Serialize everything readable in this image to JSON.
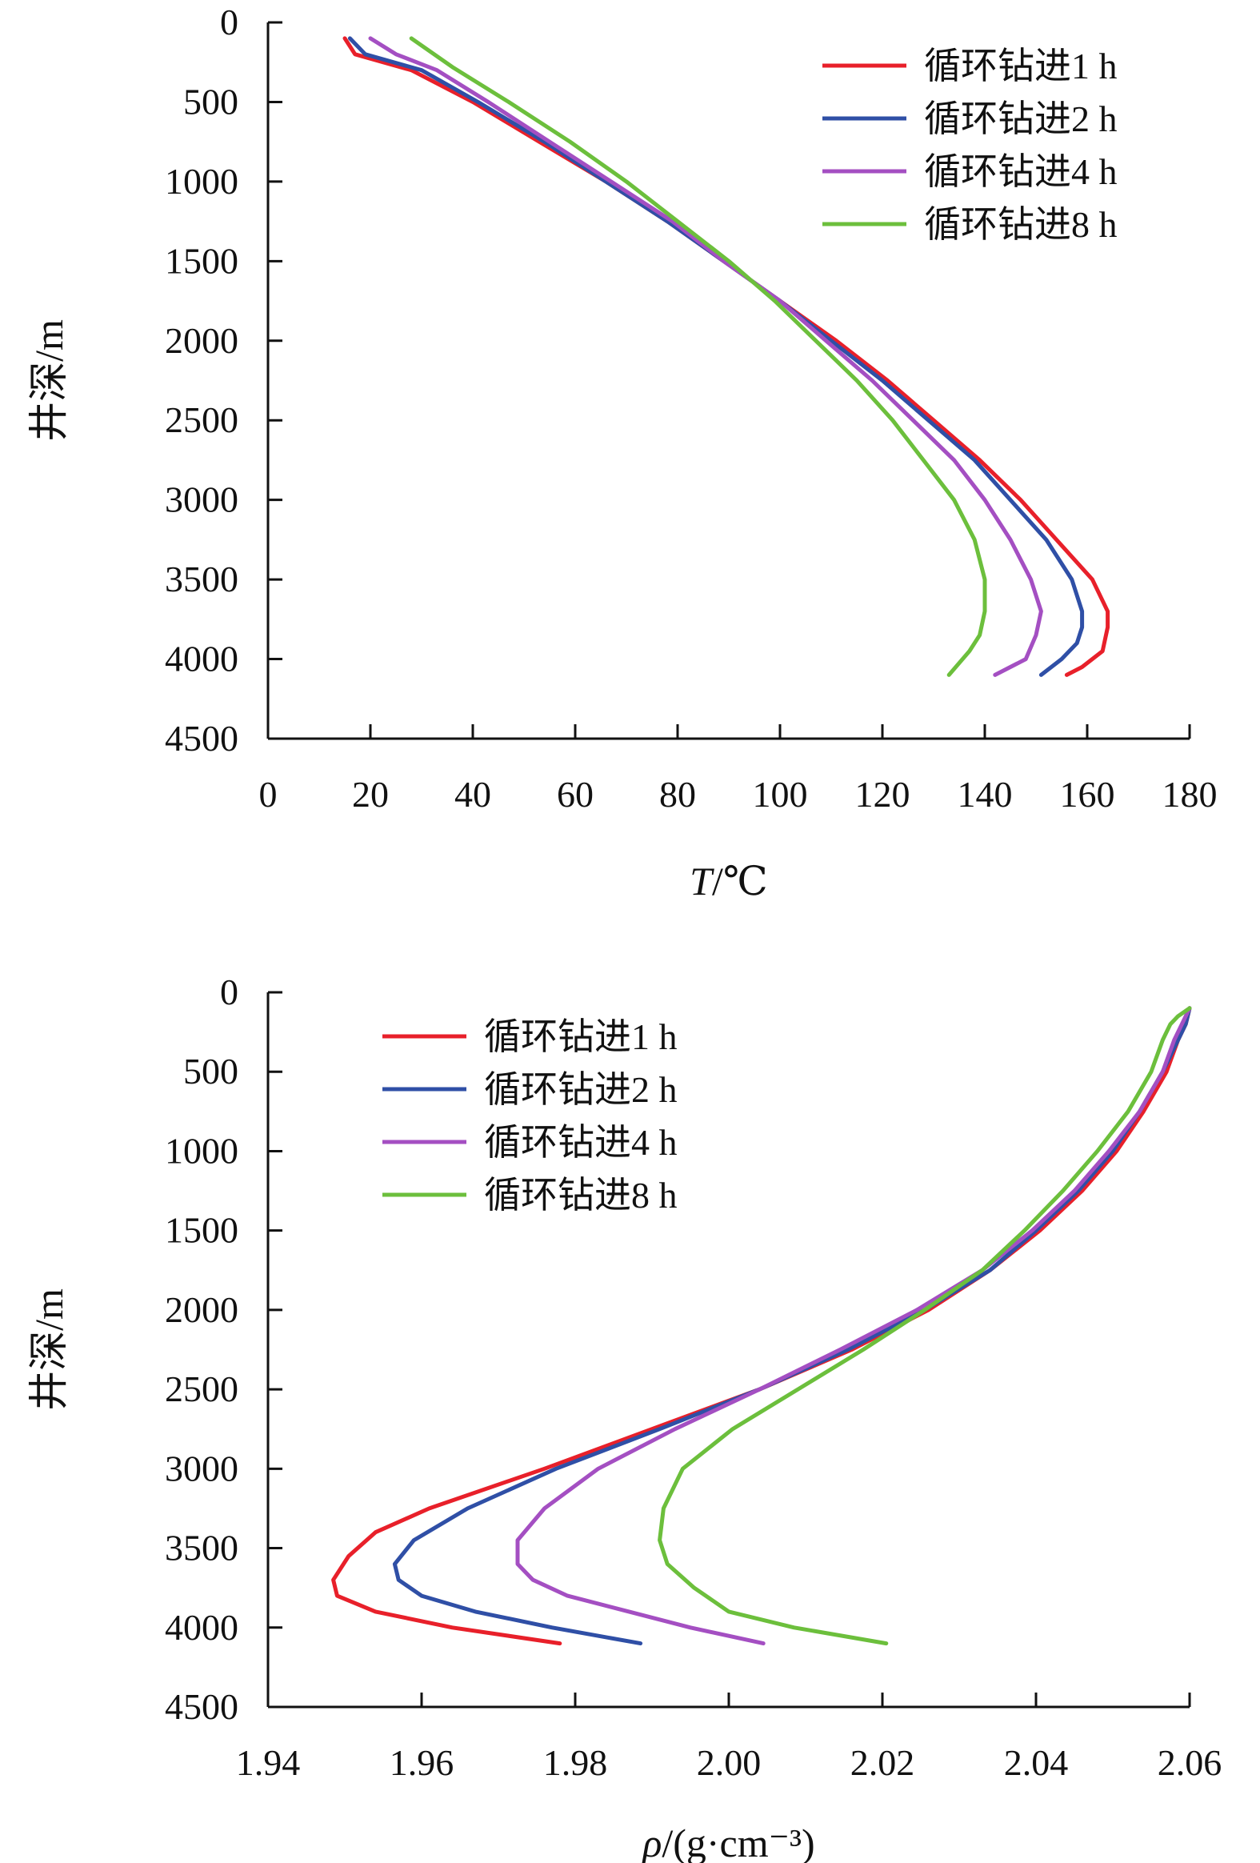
{
  "chart_data": [
    {
      "type": "line",
      "orientation": "depth-profile",
      "xlabel": "T/℃",
      "ylabel": "井深/m",
      "xlim": [
        0,
        180
      ],
      "ylim": [
        0,
        4500
      ],
      "y_inverted": true,
      "x_ticks": [
        "0",
        "20",
        "40",
        "60",
        "80",
        "100",
        "120",
        "140",
        "160",
        "180"
      ],
      "y_ticks": [
        "0",
        "500",
        "1000",
        "1500",
        "2000",
        "2500",
        "3000",
        "3500",
        "4000",
        "4500"
      ],
      "legend_position": "top-right",
      "grid": false,
      "series": [
        {
          "name": "循环钻进1 h",
          "color": "#e8202a",
          "points": [
            [
              15,
              100
            ],
            [
              17,
              200
            ],
            [
              28,
              300
            ],
            [
              40,
              500
            ],
            [
              53,
              750
            ],
            [
              66,
              1000
            ],
            [
              78,
              1250
            ],
            [
              89,
              1500
            ],
            [
              100,
              1750
            ],
            [
              111,
              2000
            ],
            [
              121,
              2250
            ],
            [
              130,
              2500
            ],
            [
              139,
              2750
            ],
            [
              147,
              3000
            ],
            [
              154,
              3250
            ],
            [
              161,
              3500
            ],
            [
              164,
              3700
            ],
            [
              164,
              3800
            ],
            [
              163,
              3950
            ],
            [
              159,
              4050
            ],
            [
              156,
              4100
            ]
          ]
        },
        {
          "name": "循环钻进2 h",
          "color": "#2f4fa6",
          "points": [
            [
              16,
              100
            ],
            [
              19,
              200
            ],
            [
              30,
              300
            ],
            [
              41,
              500
            ],
            [
              54,
              750
            ],
            [
              66,
              1000
            ],
            [
              78,
              1250
            ],
            [
              89,
              1500
            ],
            [
              100,
              1750
            ],
            [
              110,
              2000
            ],
            [
              120,
              2250
            ],
            [
              129,
              2500
            ],
            [
              138,
              2750
            ],
            [
              145,
              3000
            ],
            [
              152,
              3250
            ],
            [
              157,
              3500
            ],
            [
              159,
              3700
            ],
            [
              159,
              3800
            ],
            [
              158,
              3900
            ],
            [
              155,
              4000
            ],
            [
              151,
              4100
            ]
          ]
        },
        {
          "name": "循环钻进4 h",
          "color": "#a44fc2",
          "points": [
            [
              20,
              100
            ],
            [
              25,
              200
            ],
            [
              33,
              300
            ],
            [
              43,
              500
            ],
            [
              55,
              750
            ],
            [
              67,
              1000
            ],
            [
              79,
              1250
            ],
            [
              89,
              1500
            ],
            [
              100,
              1750
            ],
            [
              109,
              2000
            ],
            [
              118,
              2250
            ],
            [
              126,
              2500
            ],
            [
              134,
              2750
            ],
            [
              140,
              3000
            ],
            [
              145,
              3250
            ],
            [
              149,
              3500
            ],
            [
              151,
              3700
            ],
            [
              150,
              3850
            ],
            [
              148,
              4000
            ],
            [
              142,
              4100
            ]
          ]
        },
        {
          "name": "循环钻进8 h",
          "color": "#6cbf3c",
          "points": [
            [
              28,
              100
            ],
            [
              36,
              280
            ],
            [
              47,
              500
            ],
            [
              59,
              750
            ],
            [
              70,
              1000
            ],
            [
              80,
              1250
            ],
            [
              90,
              1500
            ],
            [
              99,
              1750
            ],
            [
              107,
              2000
            ],
            [
              115,
              2250
            ],
            [
              122,
              2500
            ],
            [
              128,
              2750
            ],
            [
              134,
              3000
            ],
            [
              138,
              3250
            ],
            [
              140,
              3500
            ],
            [
              140,
              3700
            ],
            [
              139,
              3850
            ],
            [
              137,
              3950
            ],
            [
              133,
              4100
            ]
          ]
        }
      ]
    },
    {
      "type": "line",
      "orientation": "depth-profile",
      "xlabel": "ρ/(g·cm⁻³)",
      "ylabel": "井深/m",
      "xlim": [
        1.94,
        2.06
      ],
      "ylim": [
        0,
        4500
      ],
      "y_inverted": true,
      "x_ticks": [
        "1.94",
        "1.96",
        "1.98",
        "2.00",
        "2.02",
        "2.04",
        "2.06"
      ],
      "y_ticks": [
        "0",
        "500",
        "1000",
        "1500",
        "2000",
        "2500",
        "3000",
        "3500",
        "4000",
        "4500"
      ],
      "legend_position": "top-left",
      "grid": false,
      "series": [
        {
          "name": "循环钻进1 h",
          "color": "#e8202a",
          "points": [
            [
              2.06,
              100
            ],
            [
              2.0595,
              200
            ],
            [
              2.0585,
              300
            ],
            [
              2.057,
              500
            ],
            [
              2.054,
              750
            ],
            [
              2.0505,
              1000
            ],
            [
              2.046,
              1250
            ],
            [
              2.0405,
              1500
            ],
            [
              2.034,
              1750
            ],
            [
              2.026,
              2000
            ],
            [
              2.016,
              2250
            ],
            [
              2.004,
              2500
            ],
            [
              1.99,
              2750
            ],
            [
              1.976,
              3000
            ],
            [
              1.961,
              3250
            ],
            [
              1.954,
              3400
            ],
            [
              1.9505,
              3550
            ],
            [
              1.9485,
              3700
            ],
            [
              1.949,
              3800
            ],
            [
              1.954,
              3900
            ],
            [
              1.964,
              4000
            ],
            [
              1.978,
              4100
            ]
          ]
        },
        {
          "name": "循环钻进2 h",
          "color": "#2f4fa6",
          "points": [
            [
              2.06,
              100
            ],
            [
              2.0595,
              200
            ],
            [
              2.0585,
              300
            ],
            [
              2.0565,
              500
            ],
            [
              2.0535,
              750
            ],
            [
              2.05,
              1000
            ],
            [
              2.0455,
              1250
            ],
            [
              2.04,
              1500
            ],
            [
              2.034,
              1750
            ],
            [
              2.0255,
              2000
            ],
            [
              2.0155,
              2250
            ],
            [
              2.004,
              2500
            ],
            [
              1.991,
              2750
            ],
            [
              1.9775,
              3000
            ],
            [
              1.966,
              3250
            ],
            [
              1.959,
              3450
            ],
            [
              1.9565,
              3600
            ],
            [
              1.957,
              3700
            ],
            [
              1.96,
              3800
            ],
            [
              1.967,
              3900
            ],
            [
              1.977,
              4000
            ],
            [
              1.9885,
              4100
            ]
          ]
        },
        {
          "name": "循环钻进4 h",
          "color": "#a44fc2",
          "points": [
            [
              2.06,
              100
            ],
            [
              2.059,
              200
            ],
            [
              2.058,
              300
            ],
            [
              2.0565,
              500
            ],
            [
              2.0535,
              750
            ],
            [
              2.0495,
              1000
            ],
            [
              2.045,
              1250
            ],
            [
              2.0395,
              1500
            ],
            [
              2.033,
              1750
            ],
            [
              2.0245,
              2000
            ],
            [
              2.0145,
              2250
            ],
            [
              2.004,
              2500
            ],
            [
              1.993,
              2750
            ],
            [
              1.983,
              3000
            ],
            [
              1.976,
              3250
            ],
            [
              1.9725,
              3450
            ],
            [
              1.9725,
              3600
            ],
            [
              1.9745,
              3700
            ],
            [
              1.979,
              3800
            ],
            [
              1.987,
              3900
            ],
            [
              1.995,
              4000
            ],
            [
              2.0045,
              4100
            ]
          ]
        },
        {
          "name": "循环钻进8 h",
          "color": "#6cbf3c",
          "points": [
            [
              2.06,
              100
            ],
            [
              2.0585,
              150
            ],
            [
              2.0575,
              200
            ],
            [
              2.0565,
              300
            ],
            [
              2.055,
              500
            ],
            [
              2.052,
              750
            ],
            [
              2.048,
              1000
            ],
            [
              2.0435,
              1250
            ],
            [
              2.0385,
              1500
            ],
            [
              2.033,
              1750
            ],
            [
              2.0255,
              2000
            ],
            [
              2.0175,
              2250
            ],
            [
              2.009,
              2500
            ],
            [
              2.0005,
              2750
            ],
            [
              1.994,
              3000
            ],
            [
              1.9915,
              3250
            ],
            [
              1.991,
              3450
            ],
            [
              1.992,
              3600
            ],
            [
              1.9955,
              3750
            ],
            [
              2.0,
              3900
            ],
            [
              2.0085,
              4000
            ],
            [
              2.0205,
              4100
            ]
          ]
        }
      ]
    }
  ]
}
